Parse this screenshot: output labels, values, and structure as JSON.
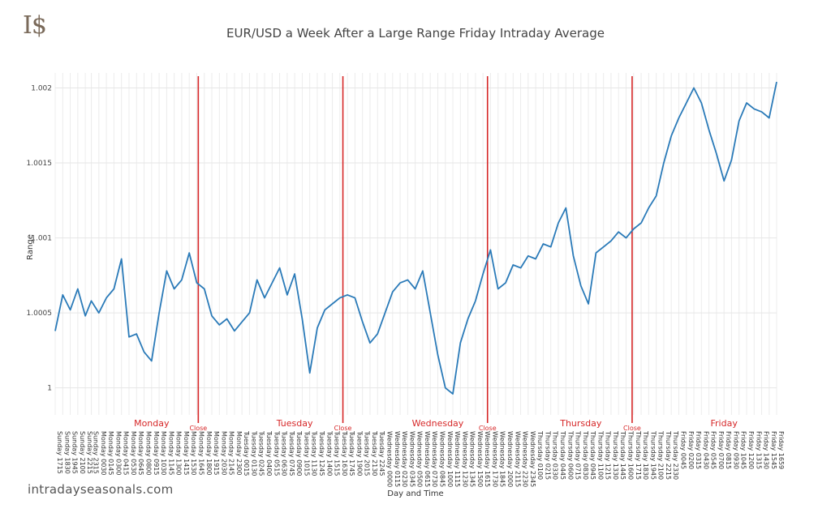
{
  "logo": "I$",
  "brand_text": "intradayseasonals.com",
  "chart_data": {
    "type": "line",
    "title": "EUR/USD a Week After a Large Range Friday Intraday Average",
    "xlabel": "Day and Time",
    "ylabel": "Range",
    "ylim": [
      0.99982,
      1.0021
    ],
    "yticks": [
      {
        "value": 1,
        "label": "1"
      },
      {
        "value": 1.0005,
        "label": "1.0005"
      },
      {
        "value": 1.001,
        "label": "1.001"
      },
      {
        "value": 1.0015,
        "label": "1.0015"
      },
      {
        "value": 1.002,
        "label": "1.002"
      }
    ],
    "grid": true,
    "line_color": "#2a7ab8",
    "close_line_color": "#d62728",
    "x_ticks": [
      "Sunday 1715",
      "Sunday 1830",
      "Sunday 1945",
      "Sunday 2100",
      "Sunday 2215",
      "Sunday 2315",
      "Monday 0030",
      "Monday 0145",
      "Monday 0300",
      "Monday 0415",
      "Monday 0530",
      "Monday 0645",
      "Monday 0800",
      "Monday 0915",
      "Monday 1030",
      "Monday 1145",
      "Monday 1300",
      "Monday 1415",
      "Monday 1530",
      "Monday 1645",
      "Monday 1800",
      "Monday 1915",
      "Monday 2030",
      "Monday 2145",
      "Monday 2300",
      "Tuesday 0015",
      "Tuesday 0130",
      "Tuesday 0245",
      "Tuesday 0400",
      "Tuesday 0515",
      "Tuesday 0630",
      "Tuesday 0745",
      "Tuesday 0900",
      "Tuesday 1015",
      "Tuesday 1130",
      "Tuesday 1245",
      "Tuesday 1400",
      "Tuesday 1515",
      "Tuesday 1630",
      "Tuesday 1745",
      "Tuesday 1900",
      "Tuesday 2015",
      "Tuesday 2130",
      "Tuesday 2245",
      "Wednesday 0000",
      "Wednesday 0115",
      "Wednesday 0230",
      "Wednesday 0345",
      "Wednesday 0500",
      "Wednesday 0615",
      "Wednesday 0730",
      "Wednesday 0845",
      "Wednesday 1000",
      "Wednesday 1115",
      "Wednesday 1230",
      "Wednesday 1345",
      "Wednesday 1500",
      "Wednesday 1615",
      "Wednesday 1730",
      "Wednesday 1845",
      "Wednesday 2000",
      "Wednesday 2115",
      "Wednesday 2230",
      "Wednesday 2345",
      "Thursday 0100",
      "Thursday 0215",
      "Thursday 0330",
      "Thursday 0445",
      "Thursday 0600",
      "Thursday 0715",
      "Thursday 0830",
      "Thursday 0945",
      "Thursday 1100",
      "Thursday 1215",
      "Thursday 1330",
      "Thursday 1445",
      "Thursday 1600",
      "Thursday 1715",
      "Thursday 1830",
      "Thursday 1945",
      "Thursday 2100",
      "Thursday 2215",
      "Thursday 2330",
      "Friday 0045",
      "Friday 0200",
      "Friday 0315",
      "Friday 0430",
      "Friday 0545",
      "Friday 0700",
      "Friday 0815",
      "Friday 0930",
      "Friday 1045",
      "Friday 1200",
      "Friday 1315",
      "Friday 1430",
      "Friday 1545",
      "Friday 1659"
    ],
    "day_labels": [
      {
        "label": "Monday",
        "x": "Monday 0915"
      },
      {
        "label": "Tuesday",
        "x": "Tuesday 0900"
      },
      {
        "label": "Wednesday",
        "x": "Wednesday 0845"
      },
      {
        "label": "Thursday",
        "x": "Thursday 0830"
      },
      {
        "label": "Friday",
        "x": "Friday 0815"
      }
    ],
    "close_markers": [
      {
        "label": "Close",
        "x": "Monday 1700"
      },
      {
        "label": "Close",
        "x": "Tuesday 1700"
      },
      {
        "label": "Close",
        "x": "Wednesday 1700"
      },
      {
        "label": "Close",
        "x": "Thursday 1700"
      }
    ],
    "series": [
      {
        "points": [
          [
            "Sunday 1715",
            1.00038
          ],
          [
            "Sunday 1830",
            1.00062
          ],
          [
            "Sunday 1945",
            1.00052
          ],
          [
            "Sunday 2100",
            1.00066
          ],
          [
            "Sunday 2215",
            1.00048
          ],
          [
            "Sunday 2315",
            1.00058
          ],
          [
            "Monday 0030",
            1.0005
          ],
          [
            "Monday 0145",
            1.0006
          ],
          [
            "Monday 0300",
            1.00066
          ],
          [
            "Monday 0415",
            1.00086
          ],
          [
            "Monday 0530",
            1.00034
          ],
          [
            "Monday 0645",
            1.00036
          ],
          [
            "Monday 0800",
            1.00024
          ],
          [
            "Monday 0915",
            1.00018
          ],
          [
            "Monday 1030",
            1.0005
          ],
          [
            "Monday 1145",
            1.00078
          ],
          [
            "Monday 1300",
            1.00066
          ],
          [
            "Monday 1415",
            1.00072
          ],
          [
            "Monday 1530",
            1.0009
          ],
          [
            "Monday 1645",
            1.0007
          ],
          [
            "Monday 1800",
            1.00066
          ],
          [
            "Monday 1915",
            1.00048
          ],
          [
            "Monday 2030",
            1.00042
          ],
          [
            "Monday 2145",
            1.00046
          ],
          [
            "Monday 2300",
            1.00038
          ],
          [
            "Tuesday 0015",
            1.00044
          ],
          [
            "Tuesday 0130",
            1.0005
          ],
          [
            "Tuesday 0245",
            1.00072
          ],
          [
            "Tuesday 0400",
            1.0006
          ],
          [
            "Tuesday 0515",
            1.0007
          ],
          [
            "Tuesday 0630",
            1.0008
          ],
          [
            "Tuesday 0745",
            1.00062
          ],
          [
            "Tuesday 0900",
            1.00076
          ],
          [
            "Tuesday 1015",
            1.00046
          ],
          [
            "Tuesday 1130",
            1.0001
          ],
          [
            "Tuesday 1245",
            1.0004
          ],
          [
            "Tuesday 1400",
            1.00052
          ],
          [
            "Tuesday 1515",
            1.00056
          ],
          [
            "Tuesday 1630",
            1.0006
          ],
          [
            "Tuesday 1745",
            1.00062
          ],
          [
            "Tuesday 1900",
            1.0006
          ],
          [
            "Tuesday 2015",
            1.00044
          ],
          [
            "Tuesday 2130",
            1.0003
          ],
          [
            "Tuesday 2245",
            1.00036
          ],
          [
            "Wednesday 0000",
            1.0005
          ],
          [
            "Wednesday 0115",
            1.00064
          ],
          [
            "Wednesday 0230",
            1.0007
          ],
          [
            "Wednesday 0345",
            1.00072
          ],
          [
            "Wednesday 0500",
            1.00066
          ],
          [
            "Wednesday 0615",
            1.00078
          ],
          [
            "Wednesday 0730",
            1.0005
          ],
          [
            "Wednesday 0845",
            1.00022
          ],
          [
            "Wednesday 1000",
            1.0
          ],
          [
            "Wednesday 1115",
            0.99996
          ],
          [
            "Wednesday 1230",
            1.0003
          ],
          [
            "Wednesday 1345",
            1.00046
          ],
          [
            "Wednesday 1500",
            1.00058
          ],
          [
            "Wednesday 1615",
            1.00076
          ],
          [
            "Wednesday 1730",
            1.00092
          ],
          [
            "Wednesday 1845",
            1.00066
          ],
          [
            "Wednesday 2000",
            1.0007
          ],
          [
            "Wednesday 2115",
            1.00082
          ],
          [
            "Wednesday 2230",
            1.0008
          ],
          [
            "Wednesday 2345",
            1.00088
          ],
          [
            "Thursday 0100",
            1.00086
          ],
          [
            "Thursday 0215",
            1.00096
          ],
          [
            "Thursday 0330",
            1.00094
          ],
          [
            "Thursday 0445",
            1.0011
          ],
          [
            "Thursday 0600",
            1.0012
          ],
          [
            "Thursday 0715",
            1.00088
          ],
          [
            "Thursday 0830",
            1.00068
          ],
          [
            "Thursday 0945",
            1.00056
          ],
          [
            "Thursday 1100",
            1.0009
          ],
          [
            "Thursday 1215",
            1.00094
          ],
          [
            "Thursday 1330",
            1.00098
          ],
          [
            "Thursday 1445",
            1.00104
          ],
          [
            "Thursday 1600",
            1.001
          ],
          [
            "Thursday 1715",
            1.00106
          ],
          [
            "Thursday 1830",
            1.0011
          ],
          [
            "Thursday 1945",
            1.0012
          ],
          [
            "Thursday 2100",
            1.00128
          ],
          [
            "Thursday 2215",
            1.0015
          ],
          [
            "Thursday 2330",
            1.00168
          ],
          [
            "Friday 0045",
            1.0018
          ],
          [
            "Friday 0200",
            1.0019
          ],
          [
            "Friday 0315",
            1.002
          ],
          [
            "Friday 0430",
            1.0019
          ],
          [
            "Friday 0545",
            1.00172
          ],
          [
            "Friday 0700",
            1.00156
          ],
          [
            "Friday 0815",
            1.00138
          ],
          [
            "Friday 0930",
            1.00152
          ],
          [
            "Friday 1045",
            1.00178
          ],
          [
            "Friday 1200",
            1.0019
          ],
          [
            "Friday 1315",
            1.00186
          ],
          [
            "Friday 1430",
            1.00184
          ],
          [
            "Friday 1545",
            1.0018
          ],
          [
            "Friday 1659",
            1.00204
          ]
        ]
      }
    ]
  }
}
